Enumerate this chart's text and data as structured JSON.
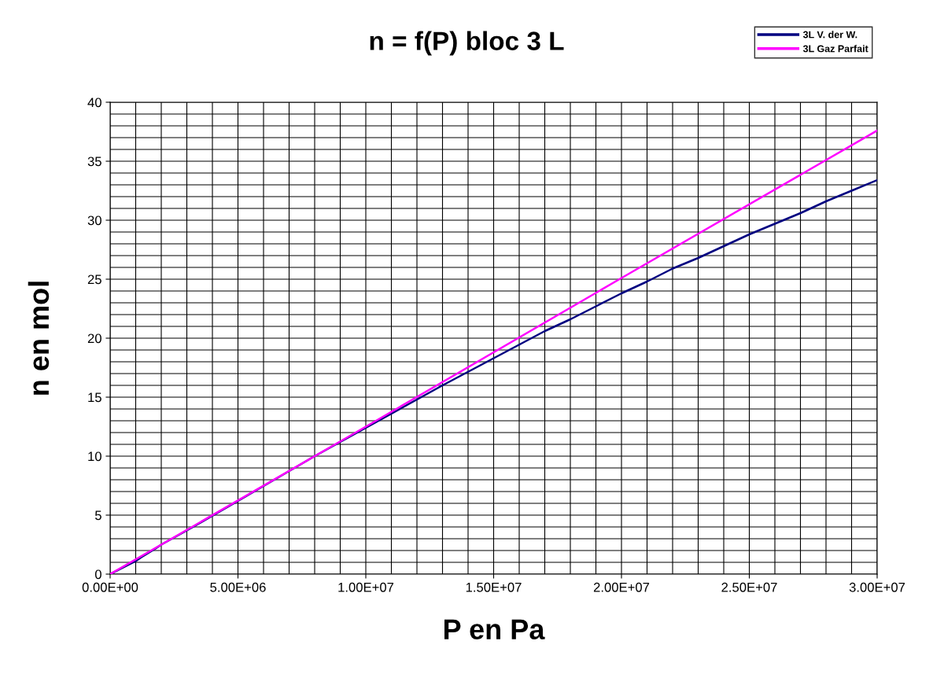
{
  "chart_data": {
    "type": "line",
    "title": "n = f(P) bloc 3 L",
    "xlabel": "P en Pa",
    "ylabel": "n en mol",
    "series": [
      {
        "name": "3L V. der W.",
        "color": "#000080",
        "x": [
          0,
          1000000,
          1200000,
          1800000,
          2000000,
          3000000,
          5000000,
          8000000,
          10000000,
          12000000,
          13000000,
          15000000,
          17000000,
          18000000,
          19000000,
          20000000,
          21000000,
          22000000,
          23000000,
          24000000,
          25000000,
          26000000,
          27000000,
          28000000,
          29000000,
          30000000
        ],
        "values": [
          0,
          1.1,
          1.4,
          2.2,
          2.5,
          3.7,
          6.2,
          10.0,
          12.4,
          14.8,
          16.0,
          18.3,
          20.6,
          21.6,
          22.7,
          23.8,
          24.8,
          25.9,
          26.8,
          27.8,
          28.8,
          29.7,
          30.6,
          31.6,
          32.5,
          33.4
        ]
      },
      {
        "name": "3L Gaz Parfait",
        "color": "#ff00ff",
        "x": [
          0,
          10000000,
          20000000,
          30000000
        ],
        "values": [
          0,
          12.5,
          25.1,
          37.6
        ]
      }
    ],
    "xlim": [
      0,
      30000000
    ],
    "ylim": [
      0,
      40
    ],
    "xticks": [
      {
        "value": 0,
        "label": "0.00E+00"
      },
      {
        "value": 1000000,
        "label": null
      },
      {
        "value": 2000000,
        "label": null
      },
      {
        "value": 3000000,
        "label": null
      },
      {
        "value": 4000000,
        "label": null
      },
      {
        "value": 5000000,
        "label": "5.00E+06"
      },
      {
        "value": 6000000,
        "label": null
      },
      {
        "value": 7000000,
        "label": null
      },
      {
        "value": 8000000,
        "label": null
      },
      {
        "value": 9000000,
        "label": null
      },
      {
        "value": 10000000,
        "label": "1.00E+07"
      },
      {
        "value": 11000000,
        "label": null
      },
      {
        "value": 12000000,
        "label": null
      },
      {
        "value": 13000000,
        "label": null
      },
      {
        "value": 14000000,
        "label": null
      },
      {
        "value": 15000000,
        "label": "1.50E+07"
      },
      {
        "value": 16000000,
        "label": null
      },
      {
        "value": 17000000,
        "label": null
      },
      {
        "value": 18000000,
        "label": null
      },
      {
        "value": 19000000,
        "label": null
      },
      {
        "value": 20000000,
        "label": "2.00E+07"
      },
      {
        "value": 21000000,
        "label": null
      },
      {
        "value": 22000000,
        "label": null
      },
      {
        "value": 23000000,
        "label": null
      },
      {
        "value": 24000000,
        "label": null
      },
      {
        "value": 25000000,
        "label": "2.50E+07"
      },
      {
        "value": 26000000,
        "label": null
      },
      {
        "value": 27000000,
        "label": null
      },
      {
        "value": 28000000,
        "label": null
      },
      {
        "value": 29000000,
        "label": null
      },
      {
        "value": 30000000,
        "label": "3.00E+07"
      }
    ],
    "yticks": [
      0,
      {
        "value": 1,
        "label": null
      },
      {
        "value": 2,
        "label": null
      },
      {
        "value": 3,
        "label": null
      },
      {
        "value": 4,
        "label": null
      },
      5,
      {
        "value": 6,
        "label": null
      },
      {
        "value": 7,
        "label": null
      },
      {
        "value": 8,
        "label": null
      },
      {
        "value": 9,
        "label": null
      },
      10,
      {
        "value": 11,
        "label": null
      },
      {
        "value": 12,
        "label": null
      },
      {
        "value": 13,
        "label": null
      },
      {
        "value": 14,
        "label": null
      },
      15,
      {
        "value": 16,
        "label": null
      },
      {
        "value": 17,
        "label": null
      },
      {
        "value": 18,
        "label": null
      },
      {
        "value": 19,
        "label": null
      },
      20,
      {
        "value": 21,
        "label": null
      },
      {
        "value": 22,
        "label": null
      },
      {
        "value": 23,
        "label": null
      },
      {
        "value": 24,
        "label": null
      },
      25,
      {
        "value": 26,
        "label": null
      },
      {
        "value": 27,
        "label": null
      },
      {
        "value": 28,
        "label": null
      },
      {
        "value": 29,
        "label": null
      },
      30,
      {
        "value": 31,
        "label": null
      },
      {
        "value": 32,
        "label": null
      },
      {
        "value": 33,
        "label": null
      },
      {
        "value": 34,
        "label": null
      },
      35,
      {
        "value": 36,
        "label": null
      },
      {
        "value": 37,
        "label": null
      },
      {
        "value": 38,
        "label": null
      },
      {
        "value": 39,
        "label": null
      },
      40
    ],
    "grid": true,
    "legend": "top right",
    "marker": "none",
    "line_style": "solid"
  }
}
